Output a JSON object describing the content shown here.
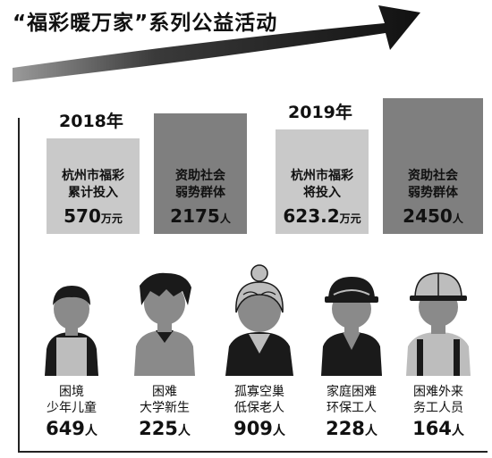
{
  "title": "“福彩暖万家”系列公益活动",
  "colors": {
    "bar_light": "#c9c9c9",
    "bar_dark": "#7f7f7f",
    "figure_dark": "#1a1a1a",
    "figure_mid": "#8a8a8a",
    "figure_light": "#bdbdbd"
  },
  "chart_data": [
    {
      "type": "bar",
      "categories": [
        "2018年",
        "2019年"
      ],
      "series": [
        {
          "name": "杭州市福彩累计投入 / 将投入",
          "values": [
            570,
            623.2
          ],
          "unit": "万元"
        },
        {
          "name": "资助社会弱势群体",
          "values": [
            2175,
            2450
          ],
          "unit": "人"
        }
      ],
      "bars": [
        {
          "year": "2018年",
          "label1": "杭州市福彩",
          "label2": "累计投入",
          "value": "570",
          "unit": "万元",
          "num": 570,
          "tone": "light"
        },
        {
          "year": "2018年",
          "label1": "资助社会",
          "label2": "弱势群体",
          "value": "2175",
          "unit": "人",
          "num": 2175,
          "tone": "dark"
        },
        {
          "year": "2019年",
          "label1": "杭州市福彩",
          "label2": "将投入",
          "value": "623.2",
          "unit": "万元",
          "num": 623.2,
          "tone": "light"
        },
        {
          "year": "2019年",
          "label1": "资助社会",
          "label2": "弱势群体",
          "value": "2450",
          "unit": "人",
          "num": 2450,
          "tone": "dark"
        }
      ]
    },
    {
      "type": "table",
      "groups": [
        {
          "line1": "困境",
          "line2": "少年儿童",
          "count": "649",
          "unit": "人",
          "figure": "child-icon"
        },
        {
          "line1": "困难",
          "line2": "大学新生",
          "count": "225",
          "unit": "人",
          "figure": "student-icon"
        },
        {
          "line1": "孤寡空巢",
          "line2": "低保老人",
          "count": "909",
          "unit": "人",
          "figure": "elderly-icon"
        },
        {
          "line1": "家庭困难",
          "line2": "环保工人",
          "count": "228",
          "unit": "人",
          "figure": "sanitation-worker-icon"
        },
        {
          "line1": "困难外来",
          "line2": "务工人员",
          "count": "164",
          "unit": "人",
          "figure": "migrant-worker-icon"
        }
      ]
    }
  ]
}
